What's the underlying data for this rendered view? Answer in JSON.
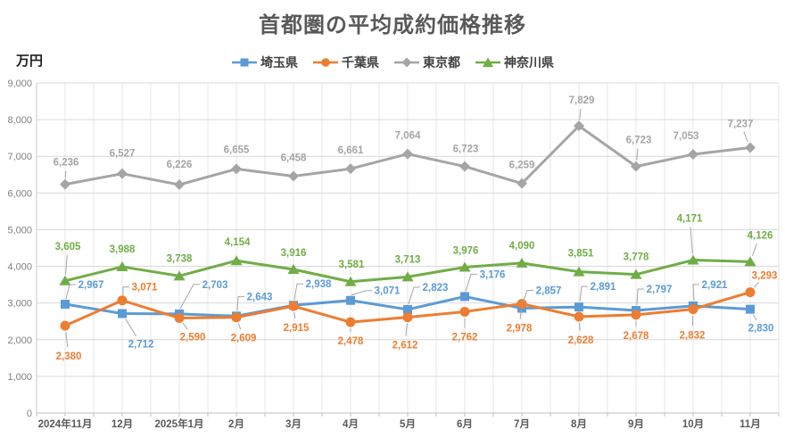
{
  "title": "首都圏の平均成約価格推移",
  "y_axis_unit": "万円",
  "chart_data": {
    "type": "line",
    "categories": [
      "2024年11月",
      "12月",
      "2025年1月",
      "2月",
      "3月",
      "4月",
      "5月",
      "6月",
      "7月",
      "8月",
      "9月",
      "10月",
      "11月"
    ],
    "series": [
      {
        "name": "埼玉県",
        "color": "#5B9BD5",
        "marker": "square",
        "values": [
          2967,
          2712,
          2703,
          2643,
          2938,
          3071,
          2823,
          3176,
          2857,
          2891,
          2797,
          2921,
          2830
        ]
      },
      {
        "name": "千葉県",
        "color": "#ED7D31",
        "marker": "circle",
        "values": [
          2380,
          3071,
          2590,
          2609,
          2915,
          2478,
          2612,
          2762,
          2978,
          2628,
          2678,
          2832,
          3293
        ]
      },
      {
        "name": "東京都",
        "color": "#A5A5A5",
        "marker": "diamond",
        "values": [
          6236,
          6527,
          6226,
          6655,
          6458,
          6661,
          7064,
          6723,
          6259,
          7829,
          6723,
          7053,
          7237
        ]
      },
      {
        "name": "神奈川県",
        "color": "#70AD47",
        "marker": "triangle",
        "values": [
          3605,
          3988,
          3738,
          4154,
          3916,
          3581,
          3713,
          3976,
          4090,
          3851,
          3778,
          4171,
          4126
        ]
      }
    ],
    "ylim": [
      0,
      9000
    ],
    "y_tick_step": 1000,
    "grid": true,
    "legend_position": "top",
    "label_offsets": {
      "0": [
        [
          29,
          -22,
          2
        ],
        [
          21,
          34,
          1
        ],
        [
          40,
          -33,
          2
        ],
        [
          26,
          -22,
          2
        ],
        [
          28,
          -24,
          2
        ],
        [
          41,
          -11,
          2
        ],
        [
          31,
          -25,
          2
        ],
        [
          31,
          -25,
          2
        ],
        [
          30,
          -20,
          2
        ],
        [
          27,
          -23,
          2
        ],
        [
          26,
          -24,
          2
        ],
        [
          24,
          -24,
          2
        ],
        [
          12,
          21,
          1
        ]
      ],
      "1": [
        [
          4,
          34,
          1
        ],
        [
          25,
          -15,
          2
        ],
        [
          15,
          21,
          1
        ],
        [
          8,
          23,
          1
        ],
        [
          3,
          24,
          1
        ],
        [
          0,
          21,
          1
        ],
        [
          -3,
          31,
          1
        ],
        [
          0,
          28,
          1
        ],
        [
          -3,
          27,
          1
        ],
        [
          2,
          26,
          1
        ],
        [
          0,
          23,
          1
        ],
        [
          -1,
          29,
          1
        ],
        [
          16,
          -19,
          1
        ]
      ],
      "2": [
        [
          1,
          -25,
          1
        ],
        [
          0,
          -23,
          0
        ],
        [
          0,
          -23,
          0
        ],
        [
          0,
          -22,
          0
        ],
        [
          0,
          -21,
          0
        ],
        [
          0,
          -21,
          0
        ],
        [
          0,
          -21,
          0
        ],
        [
          1,
          -20,
          0
        ],
        [
          0,
          -21,
          0
        ],
        [
          3,
          -29,
          1
        ],
        [
          3,
          -30,
          1
        ],
        [
          -8,
          -21,
          0
        ],
        [
          -11,
          -27,
          1
        ]
      ],
      "3": [
        [
          3,
          -39,
          1
        ],
        [
          0,
          -20,
          0
        ],
        [
          0,
          -20,
          0
        ],
        [
          1,
          -21,
          0
        ],
        [
          0,
          -19,
          0
        ],
        [
          1,
          -20,
          0
        ],
        [
          0,
          -20,
          0
        ],
        [
          1,
          -19,
          0
        ],
        [
          0,
          -20,
          0
        ],
        [
          2,
          -21,
          0
        ],
        [
          0,
          -20,
          0
        ],
        [
          -4,
          -47,
          1
        ],
        [
          11,
          -30,
          1
        ]
      ]
    }
  }
}
